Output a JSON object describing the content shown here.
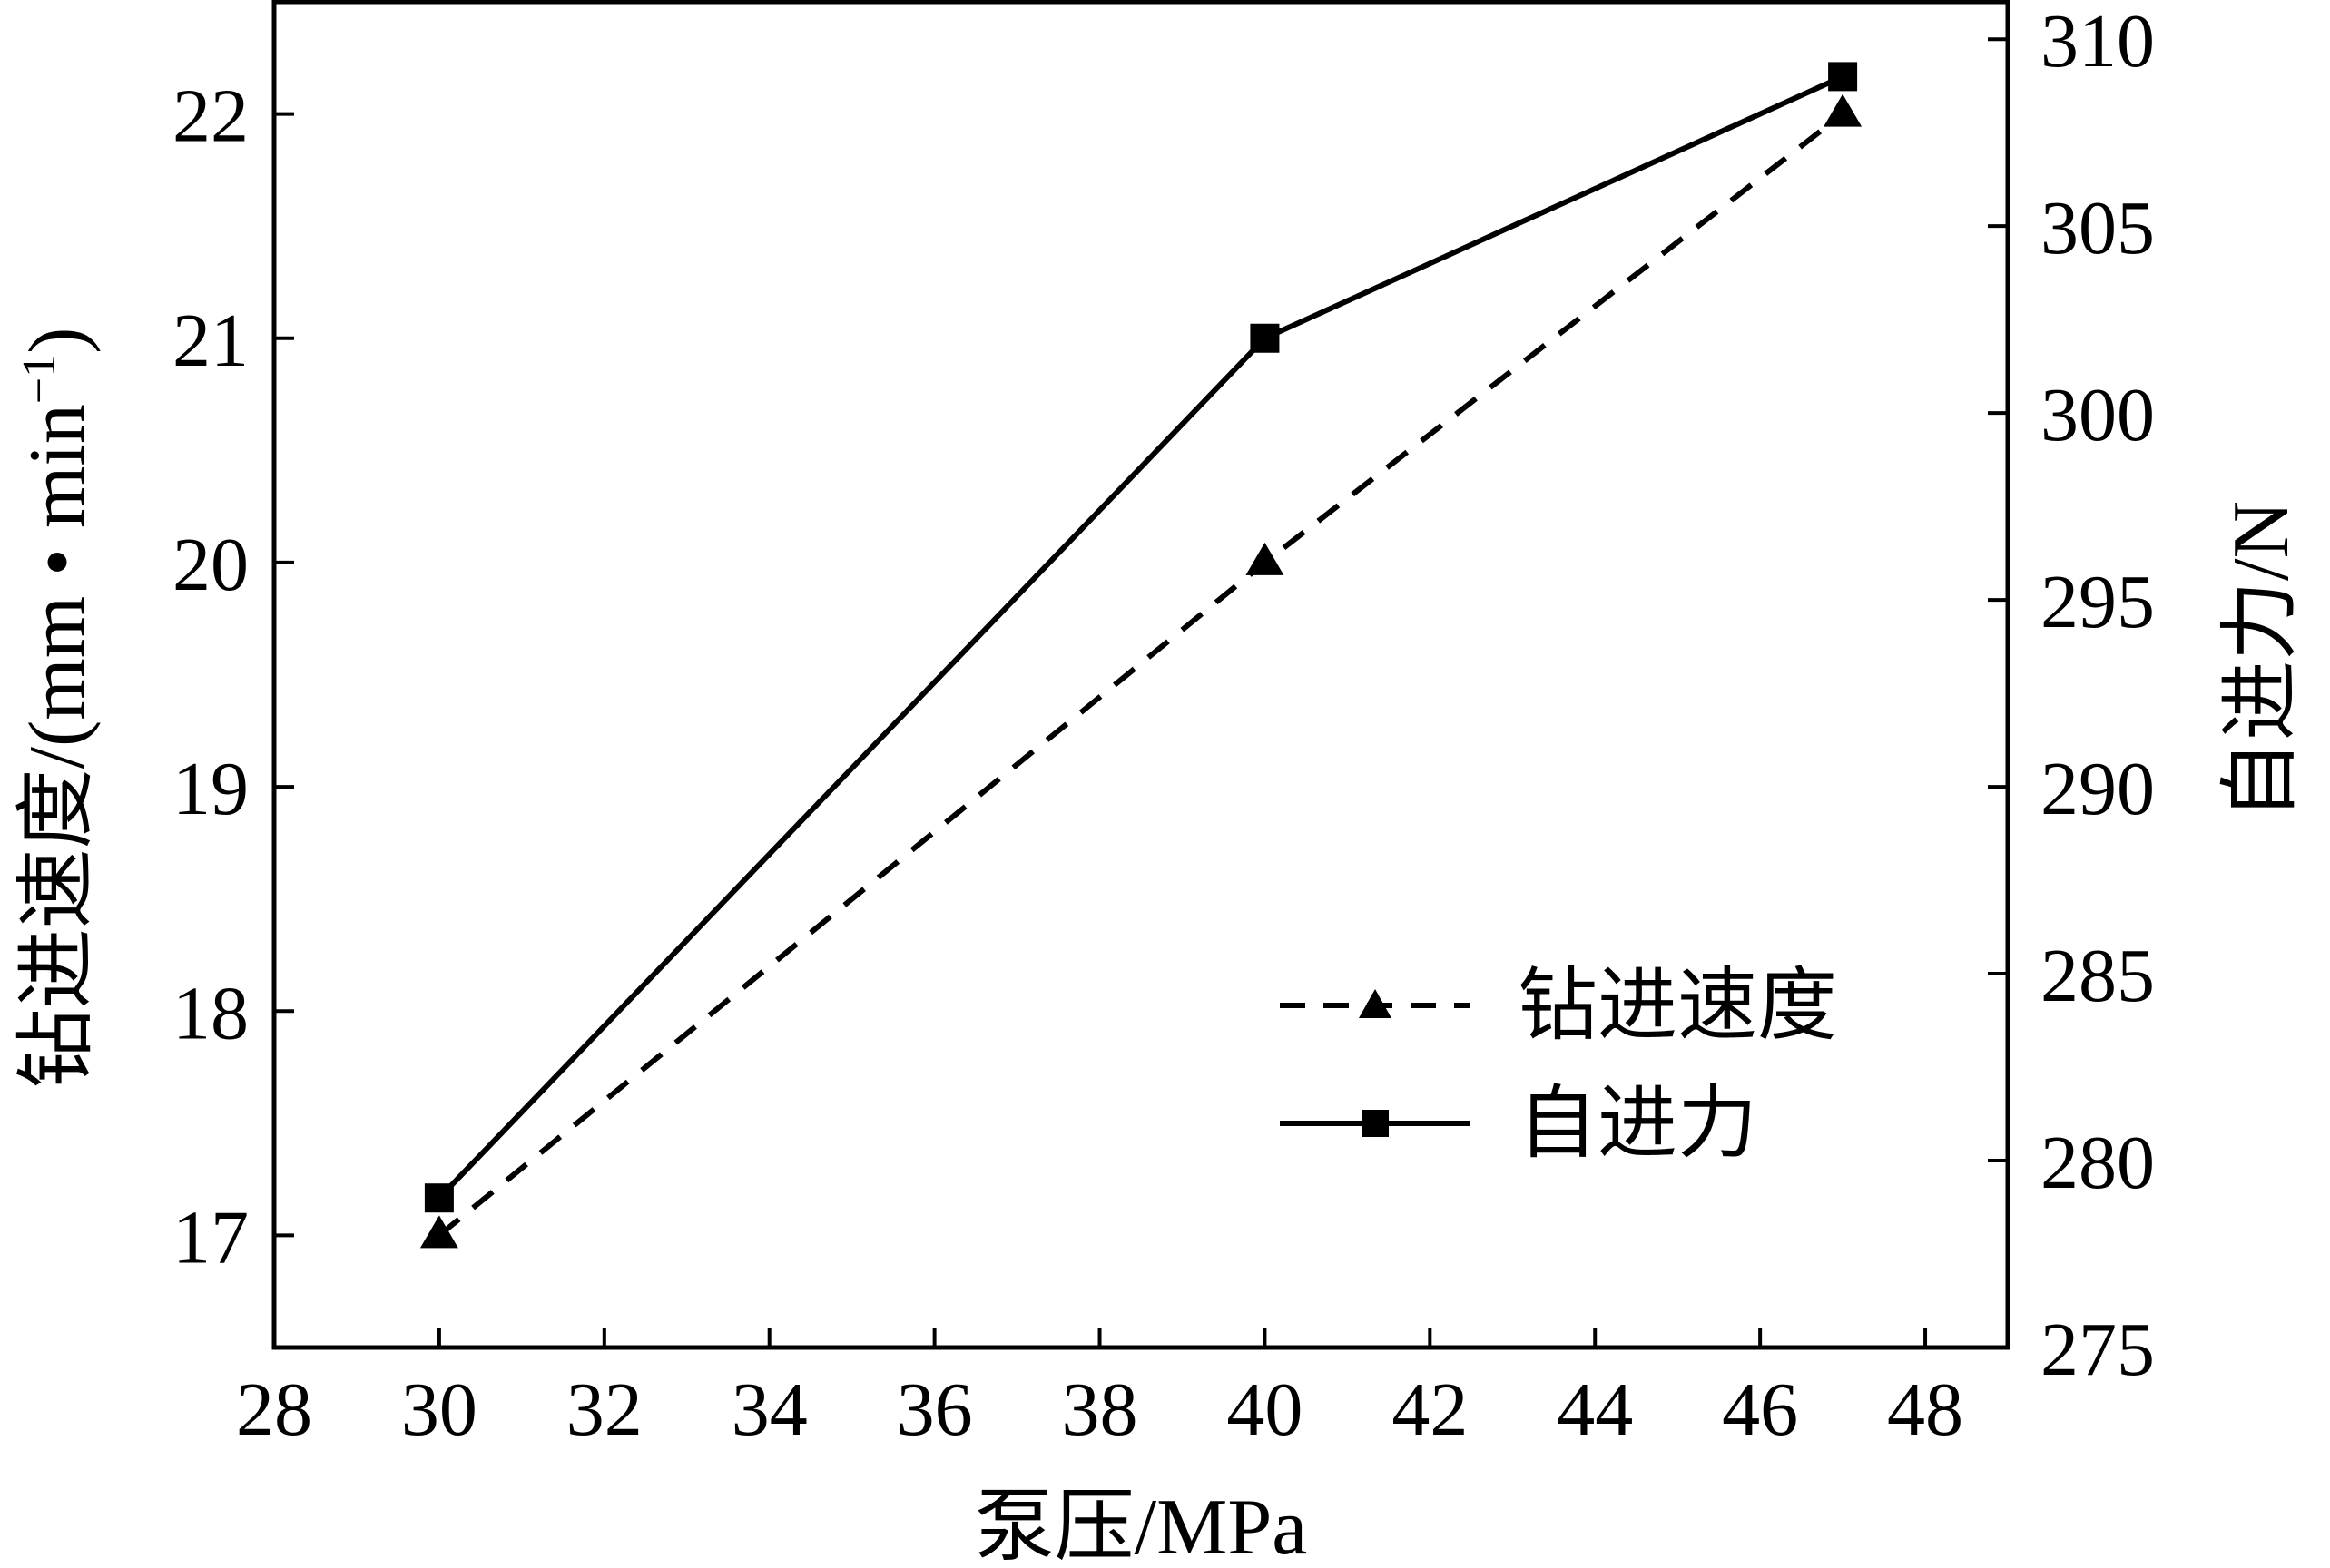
{
  "chart_data": {
    "type": "line",
    "xlabel": "泵压/MPa",
    "ylabel_left": "钻进速度/(mm • min",
    "ylabel_left_sup": "−1",
    "ylabel_left_close": ")",
    "ylabel_right": "自进力/N",
    "xlim": [
      28,
      49
    ],
    "xticks": [
      28,
      30,
      32,
      34,
      36,
      38,
      40,
      42,
      44,
      46,
      48
    ],
    "ylim_left": [
      16.5,
      22.5
    ],
    "yticks_left": [
      17,
      18,
      19,
      20,
      21,
      22
    ],
    "ylim_right": [
      275,
      311
    ],
    "yticks_right": [
      275,
      280,
      285,
      290,
      295,
      300,
      305,
      310
    ],
    "grid": false,
    "legend_position": "right",
    "series": [
      {
        "name": "钻进速度",
        "axis": "left",
        "line_style": "dashed",
        "marker": "triangle",
        "color": "#000000",
        "x": [
          30,
          40,
          47
        ],
        "y": [
          17.0,
          20.0,
          22.0
        ]
      },
      {
        "name": "自进力",
        "axis": "right",
        "line_style": "solid",
        "marker": "square",
        "color": "#000000",
        "x": [
          30,
          40,
          47
        ],
        "y": [
          279,
          302,
          309
        ]
      }
    ]
  }
}
